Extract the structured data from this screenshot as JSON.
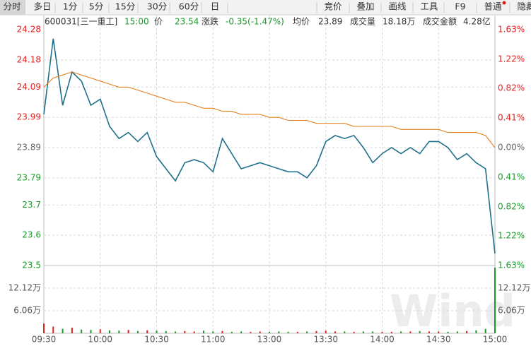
{
  "toolbar": {
    "tabs": [
      "分时",
      "多日",
      "1分",
      "5分",
      "15分",
      "30分",
      "60分",
      "日"
    ],
    "tools": [
      "竞价",
      "叠加",
      "画线",
      "工具",
      "F9",
      "普通",
      "隐藏"
    ]
  },
  "header": {
    "code": "600031[三一重工]",
    "time": "15:00",
    "price_label": "价",
    "price": "23.54",
    "change_label": "涨跌",
    "change": "-0.35(-1.47%)",
    "avg_label": "均价",
    "avg": "23.89",
    "volume_label": "成交量",
    "volume": "18.18万",
    "amount_label": "成交金额",
    "amount": "4.28亿"
  },
  "watermark": "Wind",
  "chart_data": {
    "type": "line",
    "categories": [
      "09:30",
      null,
      null,
      null,
      null,
      null,
      "10:00",
      null,
      null,
      null,
      null,
      null,
      "10:30",
      null,
      null,
      null,
      null,
      null,
      "11:00",
      null,
      null,
      null,
      null,
      null,
      "13:00",
      null,
      null,
      null,
      null,
      null,
      "13:30",
      null,
      null,
      null,
      null,
      null,
      "14:00",
      null,
      null,
      null,
      null,
      null,
      "14:30",
      null,
      null,
      null,
      null,
      null,
      "15:00"
    ],
    "series": [
      {
        "color": "#1f6f8b",
        "values": [
          24.0,
          24.25,
          24.03,
          24.14,
          24.11,
          24.03,
          24.05,
          23.96,
          23.92,
          23.94,
          23.91,
          23.94,
          23.86,
          23.82,
          23.78,
          23.84,
          23.85,
          23.84,
          23.81,
          23.92,
          23.87,
          23.82,
          23.83,
          23.84,
          23.83,
          23.82,
          23.81,
          23.81,
          23.79,
          23.83,
          23.91,
          23.93,
          23.92,
          23.93,
          23.89,
          23.84,
          23.87,
          23.89,
          23.87,
          23.89,
          23.87,
          23.91,
          23.91,
          23.89,
          23.85,
          23.87,
          23.84,
          23.82,
          23.54
        ]
      },
      {
        "color": "#e5801e",
        "values": [
          24.09,
          24.12,
          24.13,
          24.14,
          24.13,
          24.12,
          24.11,
          24.1,
          24.09,
          24.09,
          24.08,
          24.07,
          24.06,
          24.05,
          24.04,
          24.04,
          24.03,
          24.02,
          24.02,
          24.01,
          24.01,
          24.0,
          24.0,
          24.0,
          23.99,
          23.99,
          23.98,
          23.98,
          23.98,
          23.97,
          23.97,
          23.97,
          23.97,
          23.96,
          23.96,
          23.96,
          23.96,
          23.96,
          23.95,
          23.95,
          23.95,
          23.95,
          23.95,
          23.94,
          23.94,
          23.94,
          23.94,
          23.93,
          23.89
        ]
      },
      {
        "type": "bar",
        "axis": "y3",
        "values": [
          2.6,
          1.8,
          1.2,
          1.5,
          1.0,
          0.9,
          1.1,
          0.8,
          0.7,
          0.9,
          0.6,
          0.8,
          0.7,
          0.6,
          0.5,
          0.6,
          0.5,
          0.7,
          0.5,
          0.6,
          0.4,
          0.5,
          0.4,
          0.5,
          0.4,
          0.5,
          0.4,
          0.4,
          0.5,
          0.6,
          0.7,
          0.5,
          0.5,
          0.4,
          0.5,
          0.5,
          0.4,
          0.4,
          0.5,
          0.5,
          0.6,
          0.5,
          0.5,
          0.4,
          0.5,
          0.6,
          0.8,
          1.2,
          17.6
        ]
      }
    ],
    "ylim": [
      23.5,
      24.28
    ],
    "yticks": [
      24.28,
      24.18,
      24.09,
      23.99,
      23.89,
      23.79,
      23.7,
      23.6,
      23.5
    ],
    "y2lim": [
      -1.63,
      1.63
    ],
    "y2ticks": [
      {
        "value": 1.63,
        "label": "1.63%"
      },
      {
        "value": 1.22,
        "label": "1.22%"
      },
      {
        "value": 0.82,
        "label": "0.82%"
      },
      {
        "value": 0.41,
        "label": "0.41%"
      },
      {
        "value": 0,
        "label": "0.00%"
      },
      {
        "value": -0.41,
        "label": "0.41%"
      },
      {
        "value": -0.82,
        "label": "0.82%"
      },
      {
        "value": -1.22,
        "label": "1.22%"
      },
      {
        "value": -1.63,
        "label": "1.63%"
      }
    ],
    "y3lim": [
      0,
      18.18
    ],
    "y3ticks": [
      {
        "value": 12.12,
        "label": "12.12万"
      },
      {
        "value": 6.06,
        "label": "6.06万"
      }
    ],
    "grid": true,
    "up_color": "#e0201f",
    "down_color": "#1a9a2a",
    "flat_color": "#666666"
  }
}
